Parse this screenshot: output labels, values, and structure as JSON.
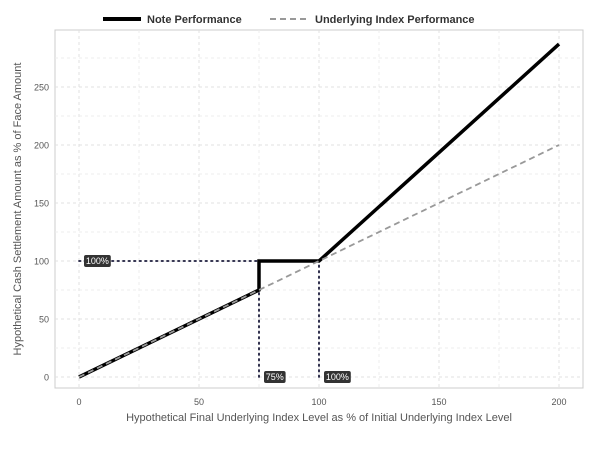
{
  "chart_data": {
    "type": "line",
    "title": "",
    "xlabel": "Hypothetical Final Underlying Index Level as % of Initial Underlying Index Level",
    "ylabel": "Hypothetical Cash Settlement Amount as % of Face Amount",
    "xlim": [
      -10,
      210
    ],
    "ylim": [
      -20,
      300
    ],
    "x_ticks": [
      0,
      50,
      100,
      150,
      200
    ],
    "y_ticks": [
      0,
      50,
      100,
      150,
      200,
      250
    ],
    "grid": true,
    "legend": "top",
    "series": [
      {
        "name": "Note Performance",
        "color": "#000000",
        "style": "solid",
        "points": [
          [
            0,
            0
          ],
          [
            75,
            75
          ],
          [
            75,
            100
          ],
          [
            100,
            100
          ],
          [
            200,
            287
          ]
        ]
      },
      {
        "name": "Underlying Index Performance",
        "color": "#999999",
        "style": "dashed",
        "points": [
          [
            0,
            0
          ],
          [
            200,
            200
          ]
        ]
      }
    ],
    "reference_lines": [
      {
        "points": [
          [
            0,
            100
          ],
          [
            75,
            100
          ]
        ],
        "style": "dotted",
        "color": "#1a1a3a"
      },
      {
        "points": [
          [
            75,
            0
          ],
          [
            75,
            100
          ]
        ],
        "style": "dotted",
        "color": "#1a1a3a"
      },
      {
        "points": [
          [
            100,
            0
          ],
          [
            100,
            100
          ]
        ],
        "style": "dotted",
        "color": "#1a1a3a"
      }
    ],
    "annotations": [
      {
        "text": "100%",
        "x": 0,
        "y": 100
      },
      {
        "text": "75%",
        "x": 75,
        "y": 0
      },
      {
        "text": "100%",
        "x": 100,
        "y": 0
      }
    ]
  }
}
